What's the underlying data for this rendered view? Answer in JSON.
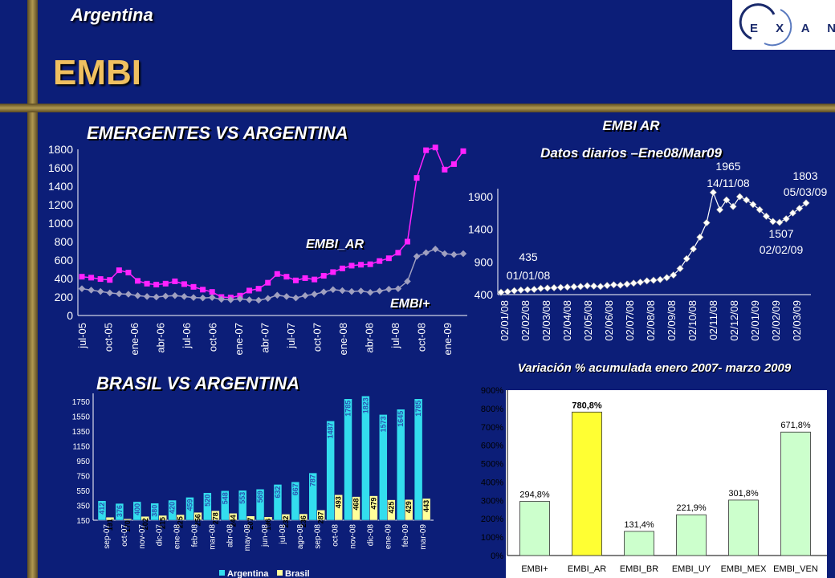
{
  "header": {
    "country": "Argentina",
    "title": "EMBI",
    "logo_text": "E X A N T E"
  },
  "chart_data": [
    {
      "type": "line",
      "title": "EMERGENTES VS ARGENTINA",
      "ylim": [
        0,
        1800
      ],
      "yticks": [
        0,
        200,
        400,
        600,
        800,
        1000,
        1200,
        1400,
        1600,
        1800
      ],
      "x_tick_labels": [
        "jul-05",
        "oct-05",
        "ene-06",
        "abr-06",
        "jul-06",
        "oct-06",
        "ene-07",
        "abr-07",
        "jul-07",
        "oct-07",
        "ene-08",
        "abr-08",
        "jul-08",
        "oct-08",
        "ene-09"
      ],
      "series": [
        {
          "name": "EMBI_AR",
          "color": "#ff22ff",
          "values": [
            420,
            410,
            395,
            385,
            490,
            465,
            375,
            345,
            335,
            345,
            370,
            340,
            310,
            280,
            255,
            200,
            195,
            215,
            270,
            290,
            355,
            450,
            420,
            380,
            405,
            390,
            430,
            470,
            510,
            540,
            550,
            555,
            590,
            620,
            680,
            800,
            1490,
            1790,
            1820,
            1580,
            1640,
            1780
          ]
        },
        {
          "name": "EMBI+",
          "color": "#a0a0c0",
          "values": [
            290,
            275,
            260,
            245,
            235,
            230,
            215,
            205,
            200,
            210,
            215,
            205,
            195,
            190,
            195,
            175,
            170,
            180,
            170,
            165,
            185,
            220,
            205,
            190,
            215,
            230,
            255,
            280,
            270,
            260,
            265,
            250,
            265,
            285,
            290,
            370,
            640,
            680,
            720,
            670,
            660,
            670
          ]
        }
      ]
    },
    {
      "type": "line",
      "title": "EMBI AR",
      "subtitle": "Datos diarios –Ene08/Mar09",
      "ylim": [
        400,
        1900
      ],
      "yticks": [
        400,
        900,
        1400,
        1900
      ],
      "x_tick_labels": [
        "02/01/08",
        "02/02/08",
        "02/03/08",
        "02/04/08",
        "02/05/08",
        "02/06/08",
        "02/07/08",
        "02/08/08",
        "02/09/08",
        "02/10/08",
        "02/11/08",
        "02/12/08",
        "02/01/09",
        "02/02/09",
        "02/03/09"
      ],
      "series": [
        {
          "name": "EMBI AR",
          "color": "#ffffff",
          "values": [
            435,
            445,
            460,
            470,
            475,
            480,
            495,
            500,
            505,
            510,
            515,
            520,
            525,
            535,
            530,
            525,
            540,
            550,
            545,
            560,
            575,
            590,
            610,
            620,
            630,
            660,
            700,
            800,
            950,
            1100,
            1280,
            1500,
            1965,
            1700,
            1850,
            1750,
            1900,
            1850,
            1780,
            1700,
            1600,
            1520,
            1507,
            1560,
            1650,
            1720,
            1803
          ]
        }
      ],
      "annotations": [
        {
          "value": "435",
          "date": "01/01/08"
        },
        {
          "value": "1965",
          "date": "14/11/08"
        },
        {
          "value": "1507",
          "date": "02/02/09"
        },
        {
          "value": "1803",
          "date": "05/03/09"
        }
      ]
    },
    {
      "type": "bar",
      "title": "BRASIL VS ARGENTINA",
      "ylim": [
        150,
        1750
      ],
      "yticks": [
        150,
        350,
        550,
        750,
        950,
        1150,
        1350,
        1550,
        1750
      ],
      "categories": [
        "sep-07",
        "oct-07",
        "nov-07",
        "dic-07",
        "ene-08",
        "feb-08",
        "mar-08",
        "abr-08",
        "may-08",
        "jun-08",
        "jul-08",
        "ago-08",
        "sep-08",
        "oct-08",
        "nov-08",
        "dic-08",
        "ene-09",
        "feb-09",
        "mar-09"
      ],
      "series": [
        {
          "name": "Argentina",
          "color": "#33ddee",
          "values": [
            412,
            376,
            400,
            380,
            420,
            459,
            520,
            548,
            553,
            569,
            632,
            667,
            787,
            1487,
            1785,
            1823,
            1573,
            1645,
            1785
          ]
        },
        {
          "name": "Brasil",
          "color": "#ffff99",
          "values": [
            191,
            170,
            202,
            215,
            225,
            256,
            278,
            244,
            207,
            196,
            232,
            236,
            287,
            493,
            468,
            479,
            425,
            429,
            443
          ]
        }
      ],
      "legend": "bottom"
    },
    {
      "type": "bar",
      "title": "Variación % acumulada enero 2007- marzo 2009",
      "ylim": [
        0,
        900
      ],
      "yticks": [
        "0%",
        "100%",
        "200%",
        "300%",
        "400%",
        "500%",
        "600%",
        "700%",
        "800%",
        "900%"
      ],
      "categories": [
        "EMBI+",
        "EMBI_AR",
        "EMBI_BR",
        "EMBI_UY",
        "EMBI_MEX",
        "EMBI_VEN"
      ],
      "values": [
        294.8,
        780.8,
        131.4,
        221.9,
        301.8,
        671.8
      ],
      "data_labels": [
        "294,8%",
        "780,8%",
        "131,4%",
        "221,9%",
        "301,8%",
        "671,8%"
      ]
    }
  ]
}
